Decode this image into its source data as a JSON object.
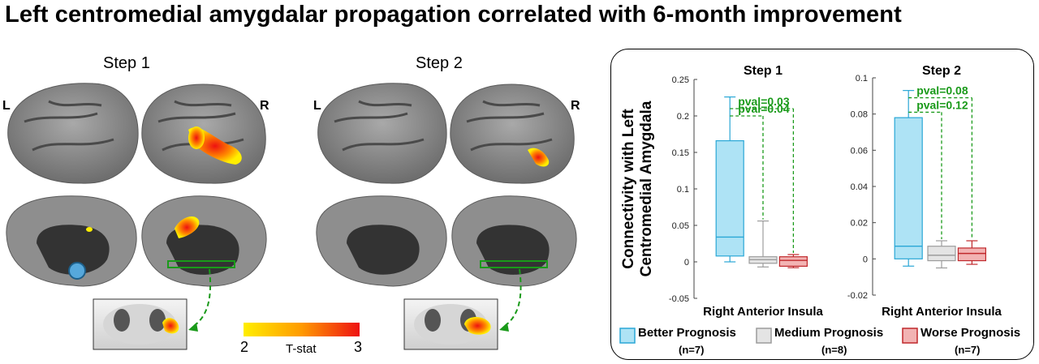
{
  "figure": {
    "title": "Left centromedial amygdalar propagation correlated with 6-month improvement"
  },
  "brain_panels": {
    "step1_label": "Step 1",
    "step2_label": "Step 2",
    "left_label": "L",
    "right_label": "R"
  },
  "colorbar": {
    "min_label": "2",
    "max_label": "3",
    "label": "T-stat",
    "colors": [
      "#ffee00",
      "#ff9a00",
      "#ee1111"
    ]
  },
  "legend": {
    "items": [
      {
        "label": "Better Prognosis",
        "n": "(n=7)",
        "fill": "#aee3f5",
        "stroke": "#2aa7d6"
      },
      {
        "label": "Medium Prognosis",
        "n": "(n=8)",
        "fill": "#e4e4e4",
        "stroke": "#9c9c9c"
      },
      {
        "label": "Worse Prognosis",
        "n": "(n=7)",
        "fill": "#f2b3b3",
        "stroke": "#c0282c"
      }
    ]
  },
  "chart_data": [
    {
      "type": "box",
      "title": "Step 1",
      "xlabel": "Right Anterior Insula",
      "ylabel": "Connectivity with Left Centromedial Amygdala",
      "ylim": [
        -0.05,
        0.25
      ],
      "yticks": [
        "-0.05",
        "0",
        "0.05",
        "0.1",
        "0.15",
        "0.2",
        "0.25"
      ],
      "ytick_values": [
        -0.05,
        0,
        0.05,
        0.1,
        0.15,
        0.2,
        0.25
      ],
      "series": [
        {
          "name": "Better Prognosis",
          "min": 0.0,
          "q1": 0.008,
          "median": 0.034,
          "q3": 0.166,
          "max": 0.226
        },
        {
          "name": "Medium Prognosis",
          "min": -0.007,
          "q1": -0.002,
          "median": 0.003,
          "q3": 0.007,
          "max": 0.056
        },
        {
          "name": "Worse Prognosis",
          "min": -0.008,
          "q1": -0.006,
          "median": 0.002,
          "q3": 0.007,
          "max": 0.01
        }
      ],
      "annotations": [
        {
          "text": "pval=0.04",
          "from": 0,
          "to": 1,
          "y": 0.2
        },
        {
          "text": "pval=0.03",
          "from": 0,
          "to": 2,
          "y": 0.21
        }
      ]
    },
    {
      "type": "box",
      "title": "Step 2",
      "xlabel": "Right Anterior Insula",
      "ylabel": "",
      "ylim": [
        -0.02,
        0.1
      ],
      "yticks": [
        "-0.02",
        "0",
        "0.02",
        "0.04",
        "0.06",
        "0.08",
        "0.1"
      ],
      "ytick_values": [
        -0.02,
        0,
        0.02,
        0.04,
        0.06,
        0.08,
        0.1
      ],
      "series": [
        {
          "name": "Better Prognosis",
          "min": -0.004,
          "q1": 0.0,
          "median": 0.007,
          "q3": 0.078,
          "max": 0.093
        },
        {
          "name": "Medium Prognosis",
          "min": -0.005,
          "q1": -0.001,
          "median": 0.002,
          "q3": 0.007,
          "max": 0.01
        },
        {
          "name": "Worse Prognosis",
          "min": -0.003,
          "q1": -0.001,
          "median": 0.003,
          "q3": 0.006,
          "max": 0.01
        }
      ],
      "annotations": [
        {
          "text": "pval=0.12",
          "from": 0,
          "to": 1,
          "y": 0.081
        },
        {
          "text": "pval=0.08",
          "from": 0,
          "to": 2,
          "y": 0.089
        }
      ]
    }
  ]
}
